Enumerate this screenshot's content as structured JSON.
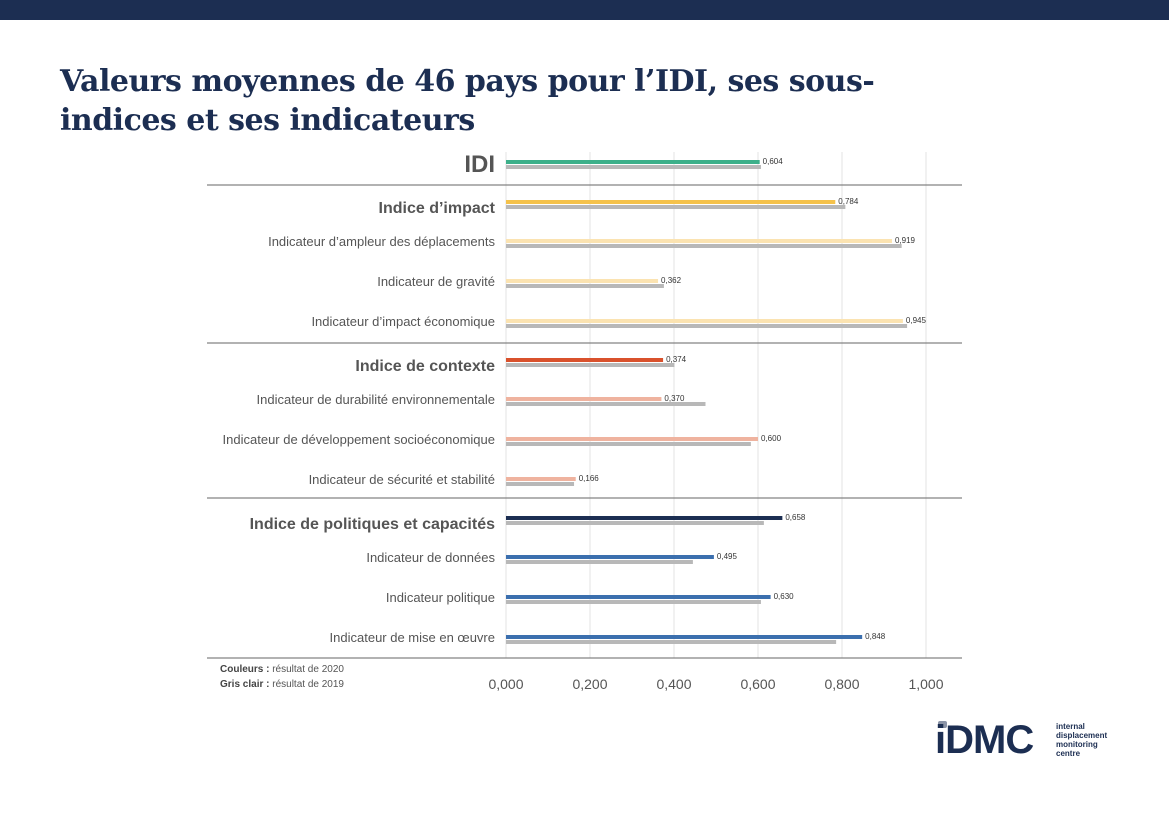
{
  "title": "Valeurs moyennes de 46 pays pour l’IDI, ses sous-indices et ses indicateurs",
  "legend": {
    "colors_key": "Couleurs :",
    "colors_text": " résultat de 2020",
    "grey_key": "Gris clair :",
    "grey_text": " résultat de 2019"
  },
  "logo": {
    "word": "iDMC",
    "sub": [
      "internal",
      "displacement",
      "monitoring",
      "centre"
    ]
  },
  "chart_data": {
    "type": "bar",
    "orientation": "horizontal",
    "xlim": [
      0,
      1
    ],
    "x_ticks": [
      "0,000",
      "0,200",
      "0,400",
      "0,600",
      "0,800",
      "1,000"
    ],
    "grid": true,
    "series": [
      {
        "name": "résultat de 2020",
        "color": "multi"
      },
      {
        "name": "résultat de 2019",
        "color": "#b8b8b8"
      }
    ],
    "categories": [
      {
        "label": "IDI",
        "level": "top",
        "v2020": 0.604,
        "v2020_label": "0,604",
        "v2019": 0.607,
        "color": "#3db08a"
      },
      {
        "label": "Indice d’impact",
        "level": "sub",
        "v2020": 0.784,
        "v2020_label": "0,784",
        "v2019": 0.808,
        "color": "#f5c24b"
      },
      {
        "label": "Indicateur d’ampleur des déplacements",
        "level": "ind",
        "v2020": 0.919,
        "v2020_label": "0,919",
        "v2019": 0.942,
        "color": "#fbe3b1"
      },
      {
        "label": "Indicateur de gravité",
        "level": "ind",
        "v2020": 0.362,
        "v2020_label": "0,362",
        "v2019": 0.376,
        "color": "#fbe3b1"
      },
      {
        "label": "Indicateur d’impact économique",
        "level": "ind",
        "v2020": 0.945,
        "v2020_label": "0,945",
        "v2019": 0.955,
        "color": "#fbe3b1"
      },
      {
        "label": "Indice de contexte",
        "level": "sub",
        "v2020": 0.374,
        "v2020_label": "0,374",
        "v2019": 0.401,
        "color": "#d9512c"
      },
      {
        "label": "Indicateur de durabilité environnementale",
        "level": "ind",
        "v2020": 0.37,
        "v2020_label": "0,370",
        "v2019": 0.475,
        "color": "#efb39f"
      },
      {
        "label": "Indicateur de développement socioéconomique",
        "level": "ind",
        "v2020": 0.6,
        "v2020_label": "0,600",
        "v2019": 0.583,
        "color": "#efb39f"
      },
      {
        "label": "Indicateur de sécurité et stabilité",
        "level": "ind",
        "v2020": 0.166,
        "v2020_label": "0,166",
        "v2019": 0.162,
        "color": "#efb39f"
      },
      {
        "label": "Indice de politiques et capacités",
        "level": "sub",
        "v2020": 0.658,
        "v2020_label": "0,658",
        "v2019": 0.614,
        "color": "#1c2e52"
      },
      {
        "label": "Indicateur de données",
        "level": "ind",
        "v2020": 0.495,
        "v2020_label": "0,495",
        "v2019": 0.445,
        "color": "#3b6fae"
      },
      {
        "label": "Indicateur politique",
        "level": "ind",
        "v2020": 0.63,
        "v2020_label": "0,630",
        "v2019": 0.607,
        "color": "#3b6fae"
      },
      {
        "label": "Indicateur de mise en œuvre",
        "level": "ind",
        "v2020": 0.848,
        "v2020_label": "0,848",
        "v2019": 0.786,
        "color": "#3b6fae"
      }
    ]
  }
}
